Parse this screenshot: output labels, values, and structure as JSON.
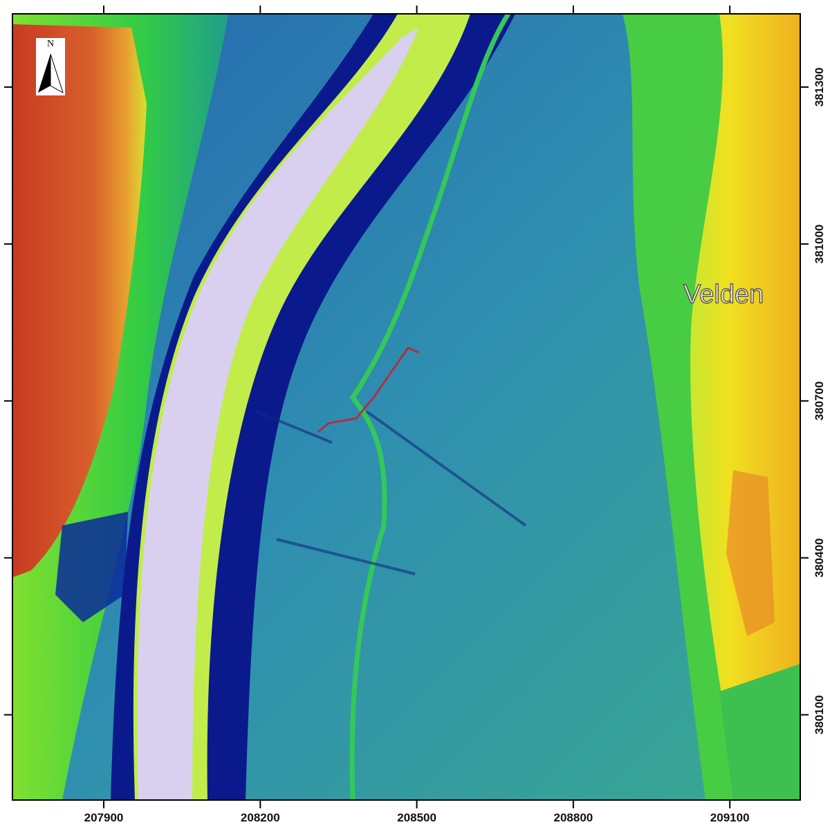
{
  "map": {
    "place_label": "Velden",
    "north_label": "N",
    "xlim": [
      207725,
      209235
    ],
    "ylim": [
      379937,
      381440
    ],
    "xticks": [
      207900,
      208200,
      208500,
      208800,
      209100
    ],
    "yticks": [
      381300,
      381000,
      380700,
      380400,
      380100
    ]
  }
}
